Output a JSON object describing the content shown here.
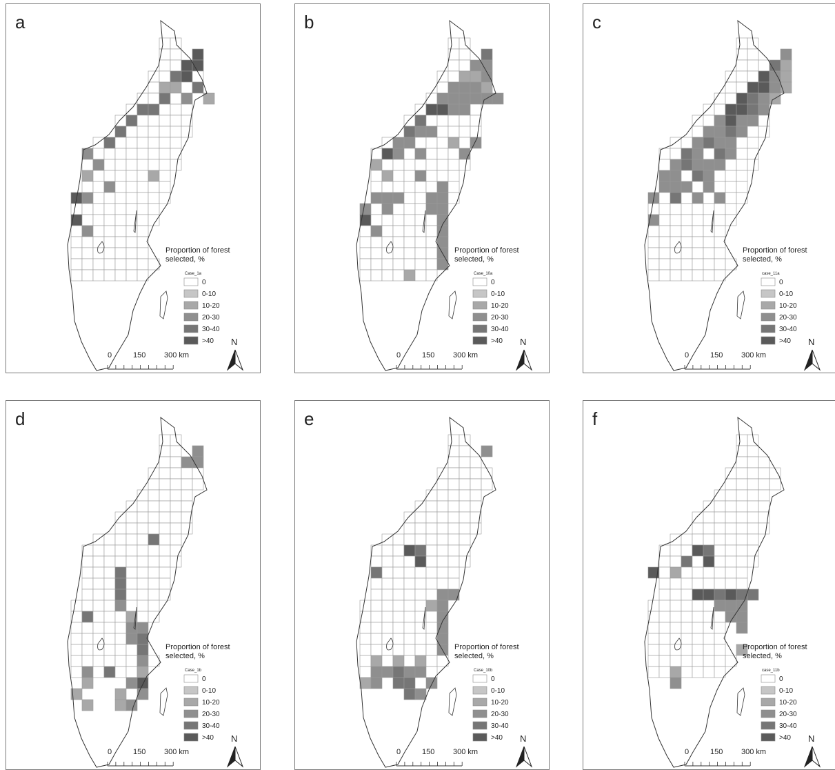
{
  "panels": [
    {
      "letter": "a",
      "legend": {
        "title_lines": [
          "Proportion of forest",
          "selected, %"
        ],
        "case": "Case_1a",
        "classes": [
          "0",
          "0-10",
          "10-20",
          "20-30",
          "30-40",
          ">40"
        ],
        "colors": [
          "#ffffff",
          "#c6c6c6",
          "#a8a8a8",
          "#8f8f8f",
          "#767676",
          "#5a5a5a"
        ]
      },
      "scale": [
        "0",
        "150",
        "300 km"
      ],
      "north": "N"
    },
    {
      "letter": "b",
      "legend": {
        "title_lines": [
          "Proportion of forest",
          "selected, %"
        ],
        "case": "Case_10a",
        "classes": [
          "0",
          "0-10",
          "10-20",
          "20-30",
          "30-40",
          ">40"
        ],
        "colors": [
          "#ffffff",
          "#c6c6c6",
          "#a8a8a8",
          "#8f8f8f",
          "#767676",
          "#5a5a5a"
        ]
      },
      "scale": [
        "0",
        "150",
        "300 km"
      ],
      "north": "N"
    },
    {
      "letter": "c",
      "legend": {
        "title_lines": [
          "Proportion of forest",
          "selected, %"
        ],
        "case": "case_11a",
        "classes": [
          "0",
          "0-10",
          "10-20",
          "20-30",
          "30-40",
          ">40"
        ],
        "colors": [
          "#ffffff",
          "#c6c6c6",
          "#a8a8a8",
          "#8f8f8f",
          "#767676",
          "#5a5a5a"
        ]
      },
      "scale": [
        "0",
        "150",
        "300 km"
      ],
      "north": "N"
    },
    {
      "letter": "d",
      "legend": {
        "title_lines": [
          "Proportion of forest",
          "selected, %"
        ],
        "case": "Case_1b",
        "classes": [
          "0",
          "0-10",
          "10-20",
          "20-30",
          "30-40",
          ">40"
        ],
        "colors": [
          "#ffffff",
          "#c6c6c6",
          "#a8a8a8",
          "#8f8f8f",
          "#767676",
          "#5a5a5a"
        ]
      },
      "scale": [
        "0",
        "150",
        "300 km"
      ],
      "north": "N"
    },
    {
      "letter": "e",
      "legend": {
        "title_lines": [
          "Proportion of forest",
          "selected, %"
        ],
        "case": "Case_10b",
        "classes": [
          "0",
          "0-10",
          "10-20",
          "20-30",
          "30-40",
          ">40"
        ],
        "colors": [
          "#ffffff",
          "#c6c6c6",
          "#a8a8a8",
          "#8f8f8f",
          "#767676",
          "#5a5a5a"
        ]
      },
      "scale": [
        "0",
        "150",
        "300 km"
      ],
      "north": "N"
    },
    {
      "letter": "f",
      "legend": {
        "title_lines": [
          "Proportion of forest",
          "selected, %"
        ],
        "case": "case_11b",
        "classes": [
          "0",
          "0-10",
          "10-20",
          "20-30",
          "30-40",
          ">40"
        ],
        "colors": [
          "#ffffff",
          "#c6c6c6",
          "#a8a8a8",
          "#8f8f8f",
          "#767676",
          "#5a5a5a"
        ]
      },
      "scale": [
        "0",
        "150",
        "300 km"
      ],
      "north": "N"
    }
  ]
}
